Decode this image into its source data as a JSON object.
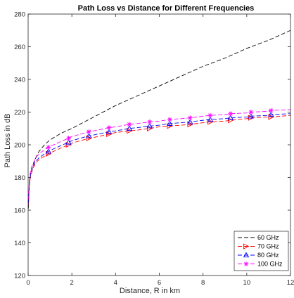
{
  "chart_data": {
    "type": "line",
    "title": "Path Loss vs Distance for Different Frequencies",
    "xlabel": "Distance, R in km",
    "ylabel": "Path Loss in dB",
    "xlim": [
      0,
      12
    ],
    "ylim": [
      120,
      280
    ],
    "xticks": [
      0,
      2,
      4,
      6,
      8,
      10,
      12
    ],
    "yticks": [
      120,
      140,
      160,
      180,
      200,
      220,
      240,
      260,
      280
    ],
    "grid": false,
    "legend_position": "bottom-right",
    "series": [
      {
        "name": "60 GHz",
        "color": "#000000",
        "marker": "none",
        "x": [
          0.01,
          0.05,
          0.1,
          0.2,
          0.35,
          0.5,
          0.75,
          1,
          1.5,
          2,
          3,
          4,
          5,
          6,
          7,
          8,
          9,
          10,
          11,
          12
        ],
        "y": [
          161,
          175,
          181,
          187,
          192,
          196,
          200,
          203,
          207,
          210,
          217,
          224,
          230,
          236,
          242,
          248,
          253,
          259,
          264,
          270
        ]
      },
      {
        "name": "70 GHz",
        "color": "#ff0000",
        "marker": "triangle-right",
        "x": [
          0.01,
          0.05,
          0.1,
          0.2,
          0.35,
          0.5,
          0.75,
          0.93,
          1,
          1.5,
          1.85,
          2,
          2.78,
          3,
          3.7,
          4,
          4.63,
          5,
          5.56,
          6,
          6.48,
          7,
          7.41,
          8,
          8.33,
          9,
          9.26,
          10,
          10.19,
          11,
          11.11,
          12
        ],
        "y": [
          163,
          174,
          180,
          185,
          189,
          191,
          193,
          194.5,
          195,
          198,
          200,
          201,
          204,
          204.5,
          206.5,
          207.5,
          208.5,
          209,
          210,
          211,
          211.5,
          212,
          212.5,
          213.5,
          214,
          214.5,
          215,
          216,
          216.5,
          217,
          217,
          218
        ]
      },
      {
        "name": "80 GHz",
        "color": "#0000ff",
        "marker": "triangle-up",
        "x": [
          0.01,
          0.05,
          0.1,
          0.2,
          0.35,
          0.5,
          0.75,
          0.93,
          1,
          1.5,
          1.85,
          2,
          2.78,
          3,
          3.7,
          4,
          4.63,
          5,
          5.56,
          6,
          6.48,
          7,
          7.41,
          8,
          8.33,
          9,
          9.26,
          10,
          10.19,
          11,
          11.11,
          12
        ],
        "y": [
          164,
          175,
          181,
          186,
          190,
          192,
          194.5,
          196,
          196.5,
          199.5,
          201.5,
          202.5,
          205.5,
          206,
          208,
          208.5,
          210,
          210.5,
          211.5,
          212,
          213,
          213.5,
          214,
          215,
          215.5,
          216,
          216.5,
          217,
          217.5,
          218,
          218.5,
          219
        ]
      },
      {
        "name": "100 GHz",
        "color": "#ff00ff",
        "marker": "asterisk",
        "x": [
          0.01,
          0.05,
          0.1,
          0.2,
          0.35,
          0.5,
          0.75,
          0.93,
          1,
          1.5,
          1.85,
          2,
          2.78,
          3,
          3.7,
          4,
          4.63,
          5,
          5.56,
          6,
          6.48,
          7,
          7.41,
          8,
          8.33,
          9,
          9.26,
          10,
          10.19,
          11,
          11.11,
          12
        ],
        "y": [
          166,
          177,
          183,
          188,
          192,
          194.5,
          197,
          198.5,
          199,
          202,
          204,
          205,
          208,
          208.5,
          210.5,
          211,
          212.5,
          213,
          214,
          214.5,
          215.5,
          216,
          216.5,
          217.5,
          218,
          218.5,
          219,
          219.5,
          220,
          220.5,
          221,
          221.5
        ]
      }
    ],
    "marker_x": [
      0.93,
      1.85,
      2.78,
      3.7,
      4.63,
      5.56,
      6.48,
      7.41,
      8.33,
      9.26,
      10.19,
      11.11
    ]
  }
}
